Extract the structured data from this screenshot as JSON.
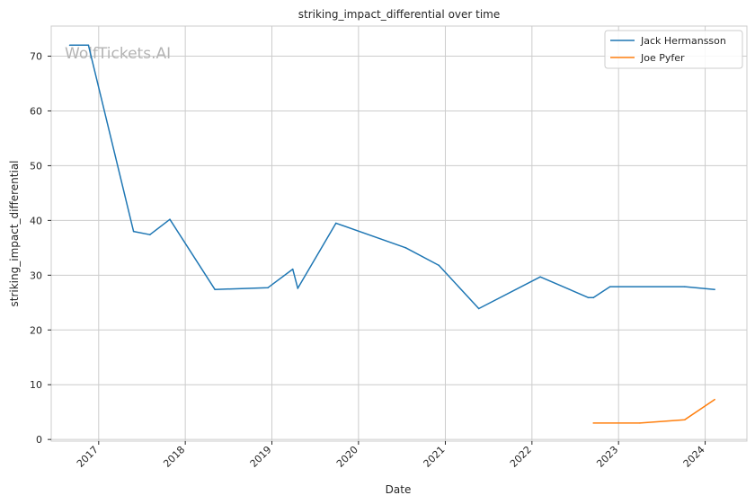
{
  "chart_data": {
    "type": "line",
    "title": "striking_impact_differential over time",
    "xlabel": "Date",
    "ylabel": "striking_impact_differential",
    "watermark": "WolfTickets.AI",
    "x_ticks": [
      "2017",
      "2018",
      "2019",
      "2020",
      "2021",
      "2022",
      "2023",
      "2024"
    ],
    "y_ticks": [
      "0",
      "10",
      "20",
      "30",
      "40",
      "50",
      "60",
      "70"
    ],
    "xlim": [
      "2016-06-15",
      "2024-06-25"
    ],
    "ylim": [
      -0.3,
      75.5
    ],
    "grid": true,
    "legend_position": "top-right",
    "series": [
      {
        "name": "Jack Hermansson",
        "color": "#1f77b4",
        "points": [
          [
            "2016-09-01",
            72
          ],
          [
            "2016-11-19",
            72
          ],
          [
            "2017-05-28",
            38
          ],
          [
            "2017-08-05",
            37.4
          ],
          [
            "2017-10-28",
            40.2
          ],
          [
            "2018-05-06",
            27.4
          ],
          [
            "2018-12-15",
            27.7
          ],
          [
            "2019-03-30",
            31.1
          ],
          [
            "2019-04-20",
            27.6
          ],
          [
            "2019-09-28",
            39.5
          ],
          [
            "2020-07-18",
            35
          ],
          [
            "2020-12-05",
            31.8
          ],
          [
            "2021-05-22",
            23.9
          ],
          [
            "2022-02-05",
            29.7
          ],
          [
            "2022-08-27",
            25.9
          ],
          [
            "2022-09-17",
            25.9
          ],
          [
            "2022-11-26",
            27.9
          ],
          [
            "2023-10-07",
            27.9
          ],
          [
            "2024-02-10",
            27.4
          ]
        ]
      },
      {
        "name": "Joe Pyfer",
        "color": "#ff7f0e",
        "points": [
          [
            "2022-09-17",
            3
          ],
          [
            "2023-04-01",
            3
          ],
          [
            "2023-10-07",
            3.6
          ],
          [
            "2024-02-10",
            7.3
          ]
        ]
      }
    ]
  }
}
